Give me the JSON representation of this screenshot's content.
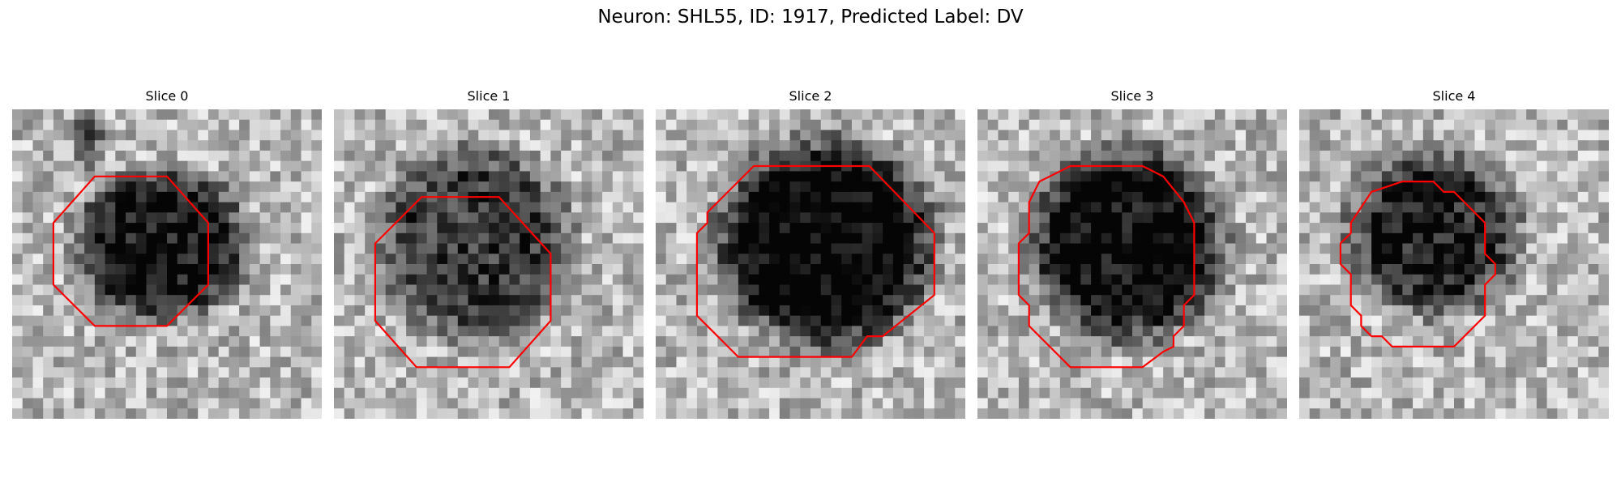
{
  "figure": {
    "title": "Neuron: SHL55, ID: 1917, Predicted Label: DV"
  },
  "colors": {
    "contour": "#ff0000",
    "background": "#ffffff"
  },
  "panels": [
    {
      "title": "Slice 0"
    },
    {
      "title": "Slice 1"
    },
    {
      "title": "Slice 2"
    },
    {
      "title": "Slice 3"
    },
    {
      "title": "Slice 4"
    }
  ]
}
